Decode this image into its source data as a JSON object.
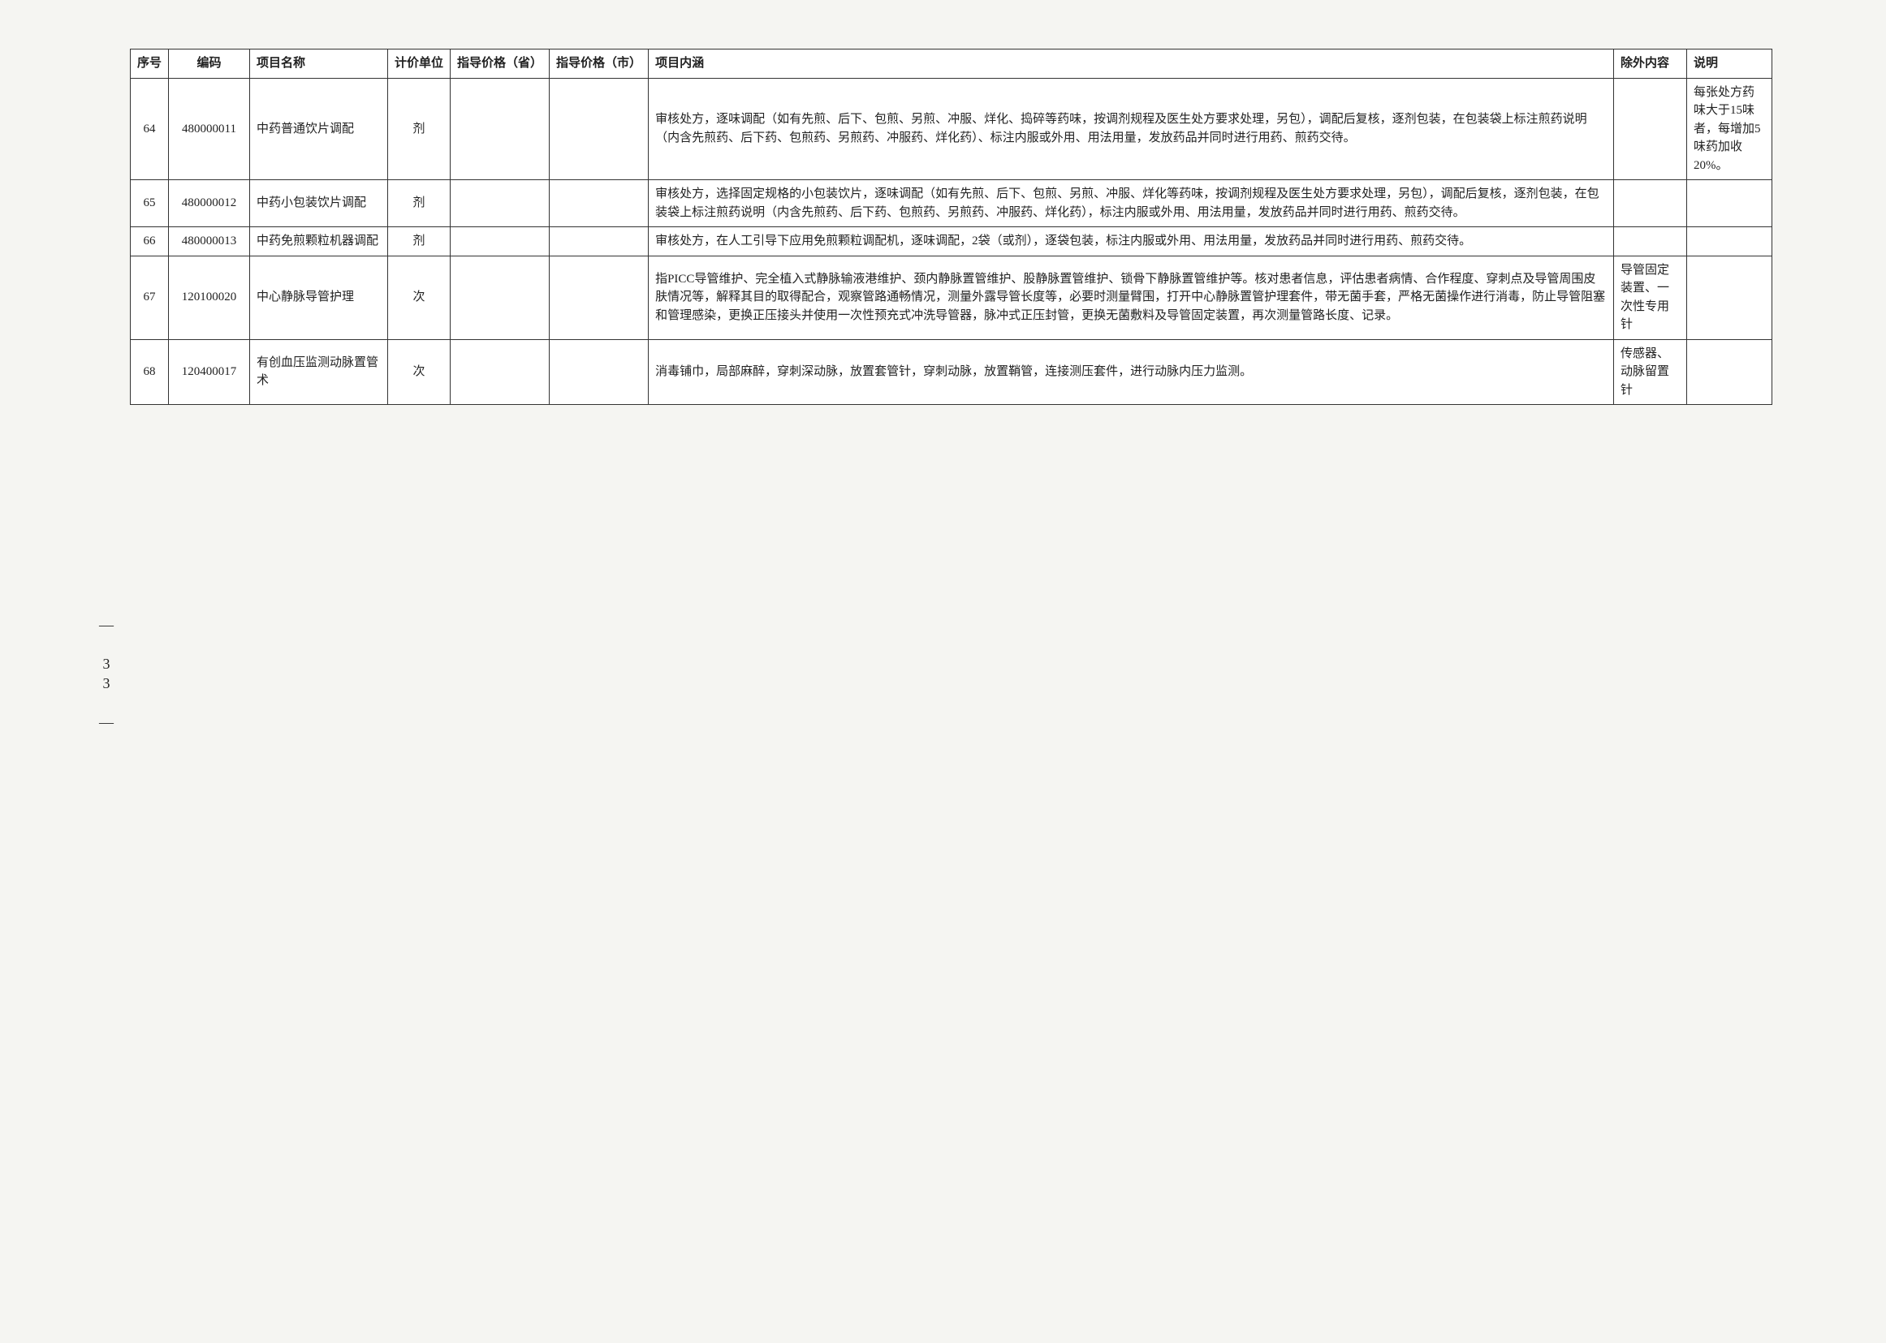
{
  "headers": {
    "seq": "序号",
    "code": "编码",
    "name": "项目名称",
    "unit": "计价单位",
    "price_prov": "指导价格（省）",
    "price_city": "指导价格（市）",
    "detail": "项目内涵",
    "except": "除外内容",
    "note": "说明"
  },
  "rows": [
    {
      "seq": "64",
      "code": "480000011",
      "name": "中药普通饮片调配",
      "unit": "剂",
      "price_prov": "",
      "price_city": "",
      "detail": "审核处方，逐味调配（如有先煎、后下、包煎、另煎、冲服、烊化、捣碎等药味，按调剂规程及医生处方要求处理，另包），调配后复核，逐剂包装，在包装袋上标注煎药说明（内含先煎药、后下药、包煎药、另煎药、冲服药、烊化药）、标注内服或外用、用法用量，发放药品并同时进行用药、煎药交待。",
      "except": "",
      "note": "每张处方药味大于15味者，每增加5味药加收20%。"
    },
    {
      "seq": "65",
      "code": "480000012",
      "name": "中药小包装饮片调配",
      "unit": "剂",
      "price_prov": "",
      "price_city": "",
      "detail": "审核处方，选择固定规格的小包装饮片，逐味调配（如有先煎、后下、包煎、另煎、冲服、烊化等药味，按调剂规程及医生处方要求处理，另包），调配后复核，逐剂包装，在包装袋上标注煎药说明（内含先煎药、后下药、包煎药、另煎药、冲服药、烊化药），标注内服或外用、用法用量，发放药品并同时进行用药、煎药交待。",
      "except": "",
      "note": ""
    },
    {
      "seq": "66",
      "code": "480000013",
      "name": "中药免煎颗粒机器调配",
      "unit": "剂",
      "price_prov": "",
      "price_city": "",
      "detail": "审核处方，在人工引导下应用免煎颗粒调配机，逐味调配，2袋（或剂），逐袋包装，标注内服或外用、用法用量，发放药品并同时进行用药、煎药交待。",
      "except": "",
      "note": ""
    },
    {
      "seq": "67",
      "code": "120100020",
      "name": "中心静脉导管护理",
      "unit": "次",
      "price_prov": "",
      "price_city": "",
      "detail": "指PICC导管维护、完全植入式静脉输液港维护、颈内静脉置管维护、股静脉置管维护、锁骨下静脉置管维护等。核对患者信息，评估患者病情、合作程度、穿刺点及导管周围皮肤情况等，解释其目的取得配合，观察管路通畅情况，测量外露导管长度等，必要时测量臂围，打开中心静脉置管护理套件，带无菌手套，严格无菌操作进行消毒，防止导管阻塞和管理感染，更换正压接头并使用一次性预充式冲洗导管器，脉冲式正压封管，更换无菌敷料及导管固定装置，再次测量管路长度、记录。",
      "except": "导管固定装置、一次性专用针",
      "note": ""
    },
    {
      "seq": "68",
      "code": "120400017",
      "name": "有创血压监测动脉置管术",
      "unit": "次",
      "price_prov": "",
      "price_city": "",
      "detail": "消毒铺巾，局部麻醉，穿刺深动脉，放置套管针，穿刺动脉，放置鞘管，连接测压套件，进行动脉内压力监测。",
      "except": "传感器、动脉留置针",
      "note": ""
    }
  ],
  "page_number": "— 33 —"
}
